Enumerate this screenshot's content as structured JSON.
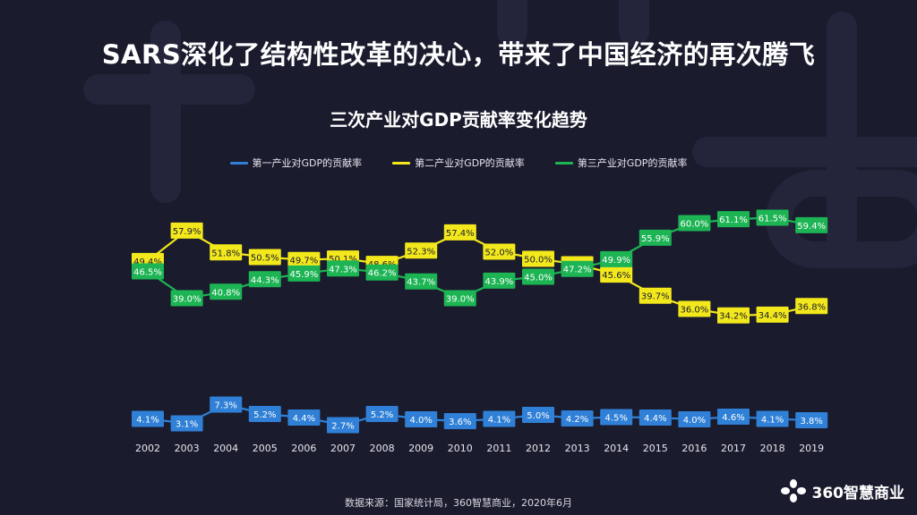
{
  "headline": "SARS深化了结构性改革的决心，带来了中国经济的再次腾飞",
  "source_note": "数据来源：国家统计局，360智慧商业，2020年6月",
  "brand": {
    "name": "360智慧商业",
    "icon": "flower-logo-icon"
  },
  "colors": {
    "background": "#1b1b2e",
    "primary": "#2f80d6",
    "secondary": "#f2e81b",
    "tertiary": "#1db454"
  },
  "chart_data": {
    "type": "line",
    "title": "三次产业对GDP贡献率变化趋势",
    "xlabel": "",
    "ylabel": "",
    "legend_position": "top-center",
    "grid": false,
    "categories": [
      "2002",
      "2003",
      "2004",
      "2005",
      "2006",
      "2007",
      "2008",
      "2009",
      "2010",
      "2011",
      "2012",
      "2013",
      "2014",
      "2015",
      "2016",
      "2017",
      "2018",
      "2019"
    ],
    "series": [
      {
        "name": "第一产业对GDP的贡献率",
        "color": "#2f80d6",
        "labels": [
          "4.1%",
          "3.1%",
          "7.3%",
          "5.2%",
          "4.4%",
          "2.7%",
          "5.2%",
          "4.0%",
          "3.6%",
          "4.1%",
          "5.0%",
          "4.2%",
          "4.5%",
          "4.4%",
          "4.0%",
          "4.6%",
          "4.1%",
          "3.8%"
        ],
        "values": [
          4.1,
          3.1,
          7.3,
          5.2,
          4.4,
          2.7,
          5.2,
          4.0,
          3.6,
          4.1,
          5.0,
          4.2,
          4.5,
          4.4,
          4.0,
          4.6,
          4.1,
          3.8
        ]
      },
      {
        "name": "第二产业对GDP的贡献率",
        "color": "#f2e81b",
        "labels": [
          "49.4%",
          "57.9%",
          "51.8%",
          "50.5%",
          "49.7%",
          "50.1%",
          "48.6%",
          "52.3%",
          "57.4%",
          "52.0%",
          "50.0%",
          "48.5%",
          "45.6%",
          "39.7%",
          "36.0%",
          "34.2%",
          "34.4%",
          "36.8%"
        ],
        "values": [
          49.4,
          57.9,
          51.8,
          50.5,
          49.7,
          50.1,
          48.6,
          52.3,
          57.4,
          52.0,
          50.0,
          48.5,
          45.6,
          39.7,
          36.0,
          34.2,
          34.4,
          36.8
        ]
      },
      {
        "name": "第三产业对GDP的贡献率",
        "color": "#1db454",
        "labels": [
          "46.5%",
          "39.0%",
          "40.8%",
          "44.3%",
          "45.9%",
          "47.3%",
          "46.2%",
          "43.7%",
          "39.0%",
          "43.9%",
          "45.0%",
          "47.2%",
          "49.9%",
          "55.9%",
          "60.0%",
          "61.1%",
          "61.5%",
          "59.4%"
        ],
        "values": [
          46.5,
          39.0,
          40.8,
          44.3,
          45.9,
          47.3,
          46.2,
          43.7,
          39.0,
          43.9,
          45.0,
          47.2,
          49.9,
          55.9,
          60.0,
          61.1,
          61.5,
          59.4
        ]
      }
    ]
  }
}
